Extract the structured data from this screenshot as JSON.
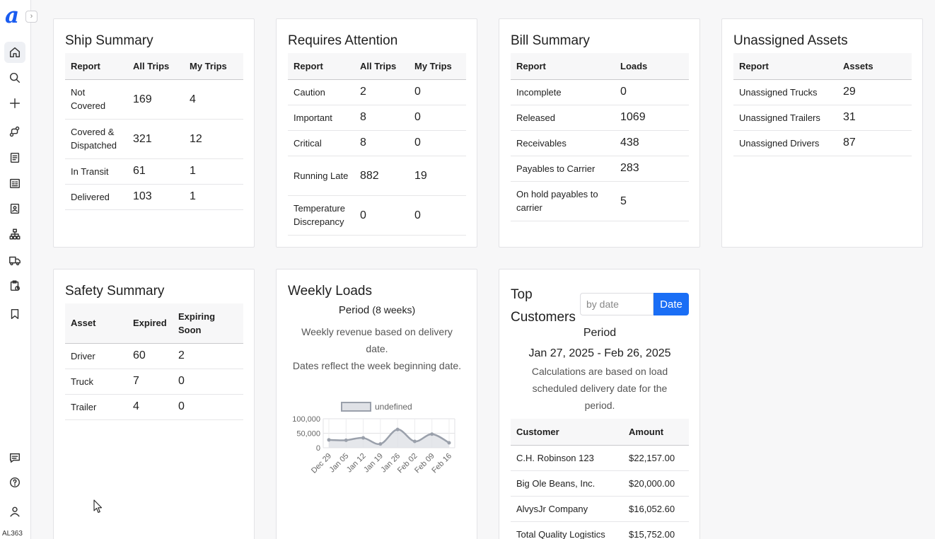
{
  "sidebar": {
    "logo": "a",
    "collapse_icon": "›",
    "user_code": "AL363",
    "items": [
      "home-icon",
      "search-icon",
      "plus-icon",
      "route-icon",
      "document-icon",
      "bill-icon",
      "contacts-icon",
      "hierarchy-icon",
      "truck-icon",
      "clipboard-icon",
      "bookmark-icon"
    ],
    "bottom_items": [
      "chat-icon",
      "help-icon",
      "user-icon"
    ]
  },
  "ship_summary": {
    "title": "Ship Summary",
    "headers": [
      "Report",
      "All Trips",
      "My Trips"
    ],
    "rows": [
      {
        "report": "Not Covered",
        "all": "169",
        "mine": "4"
      },
      {
        "report": "Covered & Dispatched",
        "all": "321",
        "mine": "12"
      },
      {
        "report": "In Transit",
        "all": "61",
        "mine": "1"
      },
      {
        "report": "Delivered",
        "all": "103",
        "mine": "1"
      }
    ]
  },
  "requires_attention": {
    "title": "Requires Attention",
    "headers": [
      "Report",
      "All Trips",
      "My Trips"
    ],
    "rows": [
      {
        "report": "Caution",
        "all": "2",
        "mine": "0"
      },
      {
        "report": "Important",
        "all": "8",
        "mine": "0"
      },
      {
        "report": "Critical",
        "all": "8",
        "mine": "0"
      },
      {
        "report": "Running Late",
        "all": "882",
        "mine": "19"
      },
      {
        "report": "Temperature Discrepancy",
        "all": "0",
        "mine": "0"
      }
    ]
  },
  "bill_summary": {
    "title": "Bill Summary",
    "headers": [
      "Report",
      "Loads"
    ],
    "rows": [
      {
        "report": "Incomplete",
        "loads": "0"
      },
      {
        "report": "Released",
        "loads": "1069"
      },
      {
        "report": "Receivables",
        "loads": "438"
      },
      {
        "report": "Payables to Carrier",
        "loads": "283"
      },
      {
        "report": "On hold payables to carrier",
        "loads": "5"
      }
    ]
  },
  "unassigned_assets": {
    "title": "Unassigned Assets",
    "headers": [
      "Report",
      "Assets"
    ],
    "rows": [
      {
        "report": "Unassigned Trucks",
        "assets": "29"
      },
      {
        "report": "Unassigned Trailers",
        "assets": "31"
      },
      {
        "report": "Unassigned Drivers",
        "assets": "87"
      }
    ]
  },
  "safety_summary": {
    "title": "Safety Summary",
    "headers": [
      "Asset",
      "Expired",
      "Expiring Soon"
    ],
    "rows": [
      {
        "asset": "Driver",
        "expired": "60",
        "soon": "2"
      },
      {
        "asset": "Truck",
        "expired": "7",
        "soon": "0"
      },
      {
        "asset": "Trailer",
        "expired": "4",
        "soon": "0"
      }
    ]
  },
  "weekly_loads": {
    "title": "Weekly Loads",
    "period_label": "Period",
    "period_value": "(8 weeks)",
    "desc1": "Weekly revenue based on delivery date.",
    "desc2": "Dates reflect the week beginning date."
  },
  "chart_data": {
    "type": "area",
    "legend": "undefined",
    "x": [
      "Dec 29",
      "Jan 05",
      "Jan 12",
      "Jan 19",
      "Jan 26",
      "Feb 02",
      "Feb 09",
      "Feb 16"
    ],
    "values": [
      27000,
      26000,
      34000,
      13000,
      63000,
      22000,
      47000,
      17000
    ],
    "ylim": [
      0,
      100000
    ],
    "yticks": [
      "100,000",
      "50,000",
      "0"
    ],
    "grid": true,
    "colors": {
      "line": "#9aa0ab",
      "fill": "#dfe1e6"
    }
  },
  "top_customers": {
    "title_line1": "Top",
    "title_line2": "Customers",
    "date_placeholder": "by date",
    "date_button": "Date",
    "period_label": "Period",
    "period_range": "Jan 27, 2025 - Feb 26, 2025",
    "desc": "Calculations are based on load scheduled delivery date for the period.",
    "headers": [
      "Customer",
      "Amount"
    ],
    "rows": [
      {
        "customer": "C.H. Robinson 123",
        "amount": "$22,157.00"
      },
      {
        "customer": "Big Ole Beans, Inc.",
        "amount": "$20,000.00"
      },
      {
        "customer": "AlvysJr Company",
        "amount": "$16,052.60"
      },
      {
        "customer": "Total Quality Logistics",
        "amount": "$15,752.00"
      }
    ]
  },
  "colors": {
    "accent": "#1a6ef5",
    "brand": "#1a5cf0"
  }
}
